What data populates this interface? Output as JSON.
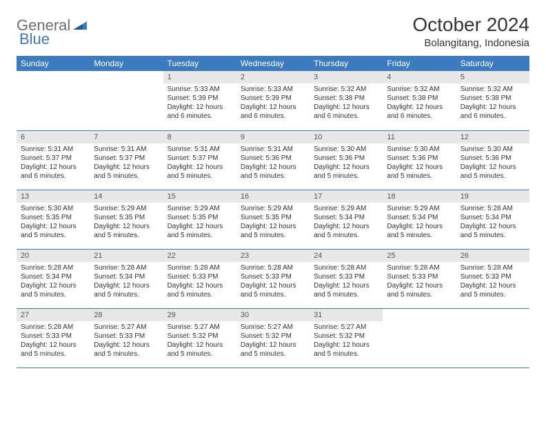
{
  "logo": {
    "text1": "General",
    "text2": "Blue"
  },
  "title": "October 2024",
  "location": "Bolangitang, Indonesia",
  "colors": {
    "header_bg": "#3b7bbf",
    "header_text": "#ffffff",
    "daynum_bg": "#e8e8e8",
    "text": "#333333",
    "logo_gray": "#6d6d6d",
    "logo_blue": "#3b7bbf"
  },
  "weekdays": [
    "Sunday",
    "Monday",
    "Tuesday",
    "Wednesday",
    "Thursday",
    "Friday",
    "Saturday"
  ],
  "weeks": [
    [
      null,
      null,
      {
        "day": "1",
        "sunrise": "Sunrise: 5:33 AM",
        "sunset": "Sunset: 5:39 PM",
        "daylight": "Daylight: 12 hours and 6 minutes."
      },
      {
        "day": "2",
        "sunrise": "Sunrise: 5:33 AM",
        "sunset": "Sunset: 5:39 PM",
        "daylight": "Daylight: 12 hours and 6 minutes."
      },
      {
        "day": "3",
        "sunrise": "Sunrise: 5:32 AM",
        "sunset": "Sunset: 5:38 PM",
        "daylight": "Daylight: 12 hours and 6 minutes."
      },
      {
        "day": "4",
        "sunrise": "Sunrise: 5:32 AM",
        "sunset": "Sunset: 5:38 PM",
        "daylight": "Daylight: 12 hours and 6 minutes."
      },
      {
        "day": "5",
        "sunrise": "Sunrise: 5:32 AM",
        "sunset": "Sunset: 5:38 PM",
        "daylight": "Daylight: 12 hours and 6 minutes."
      }
    ],
    [
      {
        "day": "6",
        "sunrise": "Sunrise: 5:31 AM",
        "sunset": "Sunset: 5:37 PM",
        "daylight": "Daylight: 12 hours and 6 minutes."
      },
      {
        "day": "7",
        "sunrise": "Sunrise: 5:31 AM",
        "sunset": "Sunset: 5:37 PM",
        "daylight": "Daylight: 12 hours and 5 minutes."
      },
      {
        "day": "8",
        "sunrise": "Sunrise: 5:31 AM",
        "sunset": "Sunset: 5:37 PM",
        "daylight": "Daylight: 12 hours and 5 minutes."
      },
      {
        "day": "9",
        "sunrise": "Sunrise: 5:31 AM",
        "sunset": "Sunset: 5:36 PM",
        "daylight": "Daylight: 12 hours and 5 minutes."
      },
      {
        "day": "10",
        "sunrise": "Sunrise: 5:30 AM",
        "sunset": "Sunset: 5:36 PM",
        "daylight": "Daylight: 12 hours and 5 minutes."
      },
      {
        "day": "11",
        "sunrise": "Sunrise: 5:30 AM",
        "sunset": "Sunset: 5:36 PM",
        "daylight": "Daylight: 12 hours and 5 minutes."
      },
      {
        "day": "12",
        "sunrise": "Sunrise: 5:30 AM",
        "sunset": "Sunset: 5:36 PM",
        "daylight": "Daylight: 12 hours and 5 minutes."
      }
    ],
    [
      {
        "day": "13",
        "sunrise": "Sunrise: 5:30 AM",
        "sunset": "Sunset: 5:35 PM",
        "daylight": "Daylight: 12 hours and 5 minutes."
      },
      {
        "day": "14",
        "sunrise": "Sunrise: 5:29 AM",
        "sunset": "Sunset: 5:35 PM",
        "daylight": "Daylight: 12 hours and 5 minutes."
      },
      {
        "day": "15",
        "sunrise": "Sunrise: 5:29 AM",
        "sunset": "Sunset: 5:35 PM",
        "daylight": "Daylight: 12 hours and 5 minutes."
      },
      {
        "day": "16",
        "sunrise": "Sunrise: 5:29 AM",
        "sunset": "Sunset: 5:35 PM",
        "daylight": "Daylight: 12 hours and 5 minutes."
      },
      {
        "day": "17",
        "sunrise": "Sunrise: 5:29 AM",
        "sunset": "Sunset: 5:34 PM",
        "daylight": "Daylight: 12 hours and 5 minutes."
      },
      {
        "day": "18",
        "sunrise": "Sunrise: 5:29 AM",
        "sunset": "Sunset: 5:34 PM",
        "daylight": "Daylight: 12 hours and 5 minutes."
      },
      {
        "day": "19",
        "sunrise": "Sunrise: 5:28 AM",
        "sunset": "Sunset: 5:34 PM",
        "daylight": "Daylight: 12 hours and 5 minutes."
      }
    ],
    [
      {
        "day": "20",
        "sunrise": "Sunrise: 5:28 AM",
        "sunset": "Sunset: 5:34 PM",
        "daylight": "Daylight: 12 hours and 5 minutes."
      },
      {
        "day": "21",
        "sunrise": "Sunrise: 5:28 AM",
        "sunset": "Sunset: 5:34 PM",
        "daylight": "Daylight: 12 hours and 5 minutes."
      },
      {
        "day": "22",
        "sunrise": "Sunrise: 5:28 AM",
        "sunset": "Sunset: 5:33 PM",
        "daylight": "Daylight: 12 hours and 5 minutes."
      },
      {
        "day": "23",
        "sunrise": "Sunrise: 5:28 AM",
        "sunset": "Sunset: 5:33 PM",
        "daylight": "Daylight: 12 hours and 5 minutes."
      },
      {
        "day": "24",
        "sunrise": "Sunrise: 5:28 AM",
        "sunset": "Sunset: 5:33 PM",
        "daylight": "Daylight: 12 hours and 5 minutes."
      },
      {
        "day": "25",
        "sunrise": "Sunrise: 5:28 AM",
        "sunset": "Sunset: 5:33 PM",
        "daylight": "Daylight: 12 hours and 5 minutes."
      },
      {
        "day": "26",
        "sunrise": "Sunrise: 5:28 AM",
        "sunset": "Sunset: 5:33 PM",
        "daylight": "Daylight: 12 hours and 5 minutes."
      }
    ],
    [
      {
        "day": "27",
        "sunrise": "Sunrise: 5:28 AM",
        "sunset": "Sunset: 5:33 PM",
        "daylight": "Daylight: 12 hours and 5 minutes."
      },
      {
        "day": "28",
        "sunrise": "Sunrise: 5:27 AM",
        "sunset": "Sunset: 5:33 PM",
        "daylight": "Daylight: 12 hours and 5 minutes."
      },
      {
        "day": "29",
        "sunrise": "Sunrise: 5:27 AM",
        "sunset": "Sunset: 5:32 PM",
        "daylight": "Daylight: 12 hours and 5 minutes."
      },
      {
        "day": "30",
        "sunrise": "Sunrise: 5:27 AM",
        "sunset": "Sunset: 5:32 PM",
        "daylight": "Daylight: 12 hours and 5 minutes."
      },
      {
        "day": "31",
        "sunrise": "Sunrise: 5:27 AM",
        "sunset": "Sunset: 5:32 PM",
        "daylight": "Daylight: 12 hours and 5 minutes."
      },
      null,
      null
    ]
  ]
}
